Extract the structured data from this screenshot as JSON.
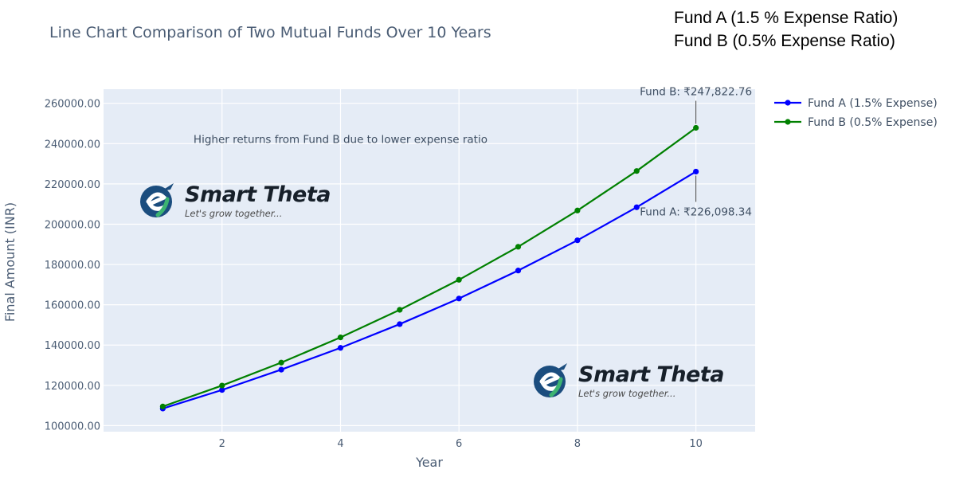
{
  "title": "Line Chart Comparison of Two Mutual Funds Over 10 Years",
  "corner_note": [
    "Fund A (1.5 % Expense Ratio)",
    "Fund B (0.5% Expense Ratio)"
  ],
  "watermark": {
    "brand": "Smart Theta",
    "tagline": "Let's grow together..."
  },
  "chart_data": {
    "type": "line",
    "title": "Line Chart Comparison of Two Mutual Funds Over 10 Years",
    "xlabel": "Year",
    "ylabel": "Final Amount (INR)",
    "x": [
      1,
      2,
      3,
      4,
      5,
      6,
      7,
      8,
      9,
      10
    ],
    "xlim": [
      0.0,
      11.0
    ],
    "ylim": [
      97000,
      267000
    ],
    "x_ticks": [
      2,
      4,
      6,
      8,
      10
    ],
    "y_ticks": [
      100000,
      120000,
      140000,
      160000,
      180000,
      200000,
      220000,
      240000,
      260000
    ],
    "y_tick_labels": [
      "100000.00",
      "120000.00",
      "140000.00",
      "160000.00",
      "180000.00",
      "200000.00",
      "220000.00",
      "240000.00",
      "260000.00"
    ],
    "grid": true,
    "legend_position": "top-right-outside",
    "series": [
      {
        "name": "Fund A (1.5% Expense)",
        "color": "#0000ff",
        "values": [
          108500,
          117700,
          127800,
          138600,
          150400,
          163100,
          177000,
          192000,
          208400,
          226098.34
        ]
      },
      {
        "name": "Fund B (0.5% Expense)",
        "color": "#008000",
        "values": [
          109500,
          119900,
          131300,
          143800,
          157500,
          172400,
          188800,
          206800,
          226400,
          247822.76
        ]
      }
    ],
    "annotations": [
      {
        "text": "Higher returns from Fund B due to lower expense ratio",
        "x": 4.0,
        "y": 240400
      },
      {
        "text": "Fund B: ₹247,822.76",
        "x": 10,
        "y": 247822.76,
        "position": "above"
      },
      {
        "text": "Fund A: ₹226,098.34",
        "x": 10,
        "y": 226098.34,
        "position": "below"
      }
    ]
  }
}
